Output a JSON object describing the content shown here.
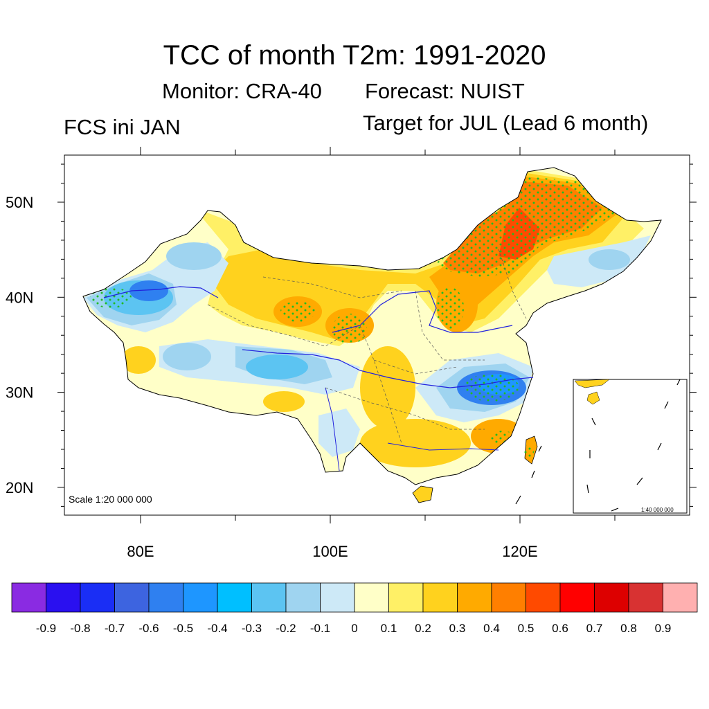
{
  "title": "TCC of month T2m: 1991-2020",
  "subtitle": {
    "monitor": "Monitor: CRA-40",
    "forecast": "Forecast: NUIST"
  },
  "left_label": "FCS ini JAN",
  "right_label": "Target for JUL (Lead 6 month)",
  "map": {
    "scale_label": "Scale 1:20 000 000",
    "inset_scale_label": "1:40 000 000",
    "lat_labels": [
      "50N",
      "40N",
      "30N",
      "20N"
    ],
    "lon_labels": [
      "80E",
      "100E",
      "120E"
    ],
    "lat_values": [
      50,
      40,
      30,
      20
    ],
    "lon_values": [
      80,
      100,
      120
    ],
    "lon_range": [
      72,
      138
    ],
    "lat_range": [
      17,
      55
    ]
  },
  "colorbar": {
    "labels": [
      "-0.9",
      "-0.8",
      "-0.7",
      "-0.6",
      "-0.5",
      "-0.4",
      "-0.3",
      "-0.2",
      "-0.1",
      "0",
      "0.1",
      "0.2",
      "0.3",
      "0.4",
      "0.5",
      "0.6",
      "0.7",
      "0.8",
      "0.9"
    ],
    "colors": [
      "#8a2be2",
      "#2a10f0",
      "#1a2ef5",
      "#3d64e0",
      "#2f80f0",
      "#1e96ff",
      "#00bfff",
      "#5cc4f2",
      "#9fd4f0",
      "#cde9f7",
      "#ffffc8",
      "#fff066",
      "#ffd21e",
      "#ffaa00",
      "#ff7f00",
      "#ff4a00",
      "#ff0000",
      "#dd0000",
      "#d83232",
      "#ffb0b0"
    ]
  },
  "palette": {
    "sig_dot": "#22bb22",
    "river": "#2222dd",
    "border": "#000000"
  }
}
